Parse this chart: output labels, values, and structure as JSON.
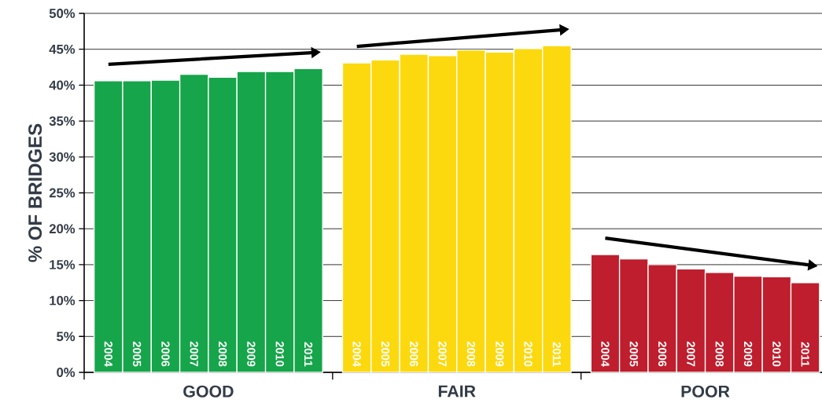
{
  "chart_data": {
    "type": "bar",
    "ylabel": "% OF BRIDGES",
    "categories": [
      "GOOD",
      "FAIR",
      "POOR"
    ],
    "series": [
      {
        "name": "2004",
        "colors": [
          "#16a54a",
          "#fcd90f",
          "#be1e2d"
        ],
        "values": [
          40.6,
          43.1,
          16.4
        ]
      },
      {
        "name": "2005",
        "colors": [
          "#16a54a",
          "#fcd90f",
          "#be1e2d"
        ],
        "values": [
          40.6,
          43.5,
          15.8
        ]
      },
      {
        "name": "2006",
        "colors": [
          "#16a54a",
          "#fcd90f",
          "#be1e2d"
        ],
        "values": [
          40.7,
          44.3,
          15.0
        ]
      },
      {
        "name": "2007",
        "colors": [
          "#16a54a",
          "#fcd90f",
          "#be1e2d"
        ],
        "values": [
          41.5,
          44.1,
          14.4
        ]
      },
      {
        "name": "2008",
        "colors": [
          "#16a54a",
          "#fcd90f",
          "#be1e2d"
        ],
        "values": [
          41.1,
          44.9,
          13.9
        ]
      },
      {
        "name": "2009",
        "colors": [
          "#16a54a",
          "#fcd90f",
          "#be1e2d"
        ],
        "values": [
          41.9,
          44.6,
          13.4
        ]
      },
      {
        "name": "2010",
        "colors": [
          "#16a54a",
          "#fcd90f",
          "#be1e2d"
        ],
        "values": [
          41.9,
          45.1,
          13.3
        ]
      },
      {
        "name": "2011",
        "colors": [
          "#16a54a",
          "#fcd90f",
          "#be1e2d"
        ],
        "values": [
          42.3,
          45.5,
          12.5
        ]
      }
    ],
    "ylim": [
      0,
      50
    ],
    "yticks": [
      {
        "value": 0,
        "label": "0%"
      },
      {
        "value": 5,
        "label": "5%"
      },
      {
        "value": 10,
        "label": "10%"
      },
      {
        "value": 15,
        "label": "15%"
      },
      {
        "value": 20,
        "label": "20%"
      },
      {
        "value": 25,
        "label": "25%"
      },
      {
        "value": 30,
        "label": "30%"
      },
      {
        "value": 35,
        "label": "35%"
      },
      {
        "value": 40,
        "label": "40%"
      },
      {
        "value": 45,
        "label": "45%"
      },
      {
        "value": 50,
        "label": "50%"
      }
    ],
    "grid": "y"
  }
}
